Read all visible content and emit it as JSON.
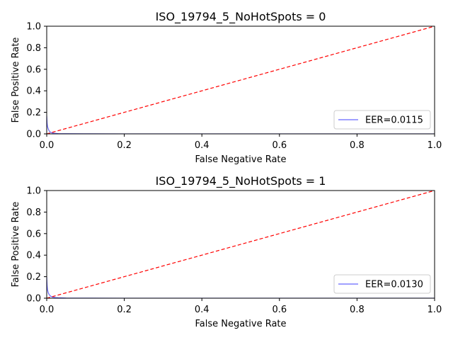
{
  "chart_data": [
    {
      "type": "line",
      "title": "ISO_19794_5_NoHotSpots = 0",
      "xlabel": "False Negative Rate",
      "ylabel": "False Positive Rate",
      "xlim": [
        0,
        1
      ],
      "ylim": [
        0,
        1
      ],
      "xticks": [
        "0.0",
        "0.2",
        "0.4",
        "0.6",
        "0.8",
        "1.0"
      ],
      "yticks": [
        "0.0",
        "0.2",
        "0.4",
        "0.6",
        "0.8",
        "1.0"
      ],
      "legend_position": "lower-right",
      "series": [
        {
          "name": "EER=0.0115",
          "color": "#0000ff",
          "style": "solid",
          "x": [
            0.0,
            0.001,
            0.002,
            0.004,
            0.006,
            0.008,
            0.0115,
            0.015,
            0.02,
            0.03,
            0.05,
            0.1,
            0.2,
            0.5,
            1.0
          ],
          "y": [
            0.17,
            0.1,
            0.07,
            0.045,
            0.03,
            0.02,
            0.0115,
            0.008,
            0.005,
            0.003,
            0.002,
            0.001,
            0.0005,
            0.0002,
            0.0
          ]
        },
        {
          "name": "",
          "color": "#ff0000",
          "style": "dashed",
          "x": [
            0,
            1
          ],
          "y": [
            0,
            1
          ]
        }
      ]
    },
    {
      "type": "line",
      "title": "ISO_19794_5_NoHotSpots = 1",
      "xlabel": "False Negative Rate",
      "ylabel": "False Positive Rate",
      "xlim": [
        0,
        1
      ],
      "ylim": [
        0,
        1
      ],
      "xticks": [
        "0.0",
        "0.2",
        "0.4",
        "0.6",
        "0.8",
        "1.0"
      ],
      "yticks": [
        "0.0",
        "0.2",
        "0.4",
        "0.6",
        "0.8",
        "1.0"
      ],
      "legend_position": "lower-right",
      "series": [
        {
          "name": "EER=0.0130",
          "color": "#0000ff",
          "style": "solid",
          "x": [
            0.0,
            0.001,
            0.002,
            0.004,
            0.006,
            0.009,
            0.013,
            0.017,
            0.022,
            0.03,
            0.05,
            0.1,
            0.2,
            0.5,
            1.0
          ],
          "y": [
            0.2,
            0.12,
            0.08,
            0.05,
            0.035,
            0.022,
            0.013,
            0.009,
            0.006,
            0.004,
            0.002,
            0.001,
            0.0005,
            0.0002,
            0.0
          ]
        },
        {
          "name": "",
          "color": "#ff0000",
          "style": "dashed",
          "x": [
            0,
            1
          ],
          "y": [
            0,
            1
          ]
        }
      ]
    }
  ]
}
